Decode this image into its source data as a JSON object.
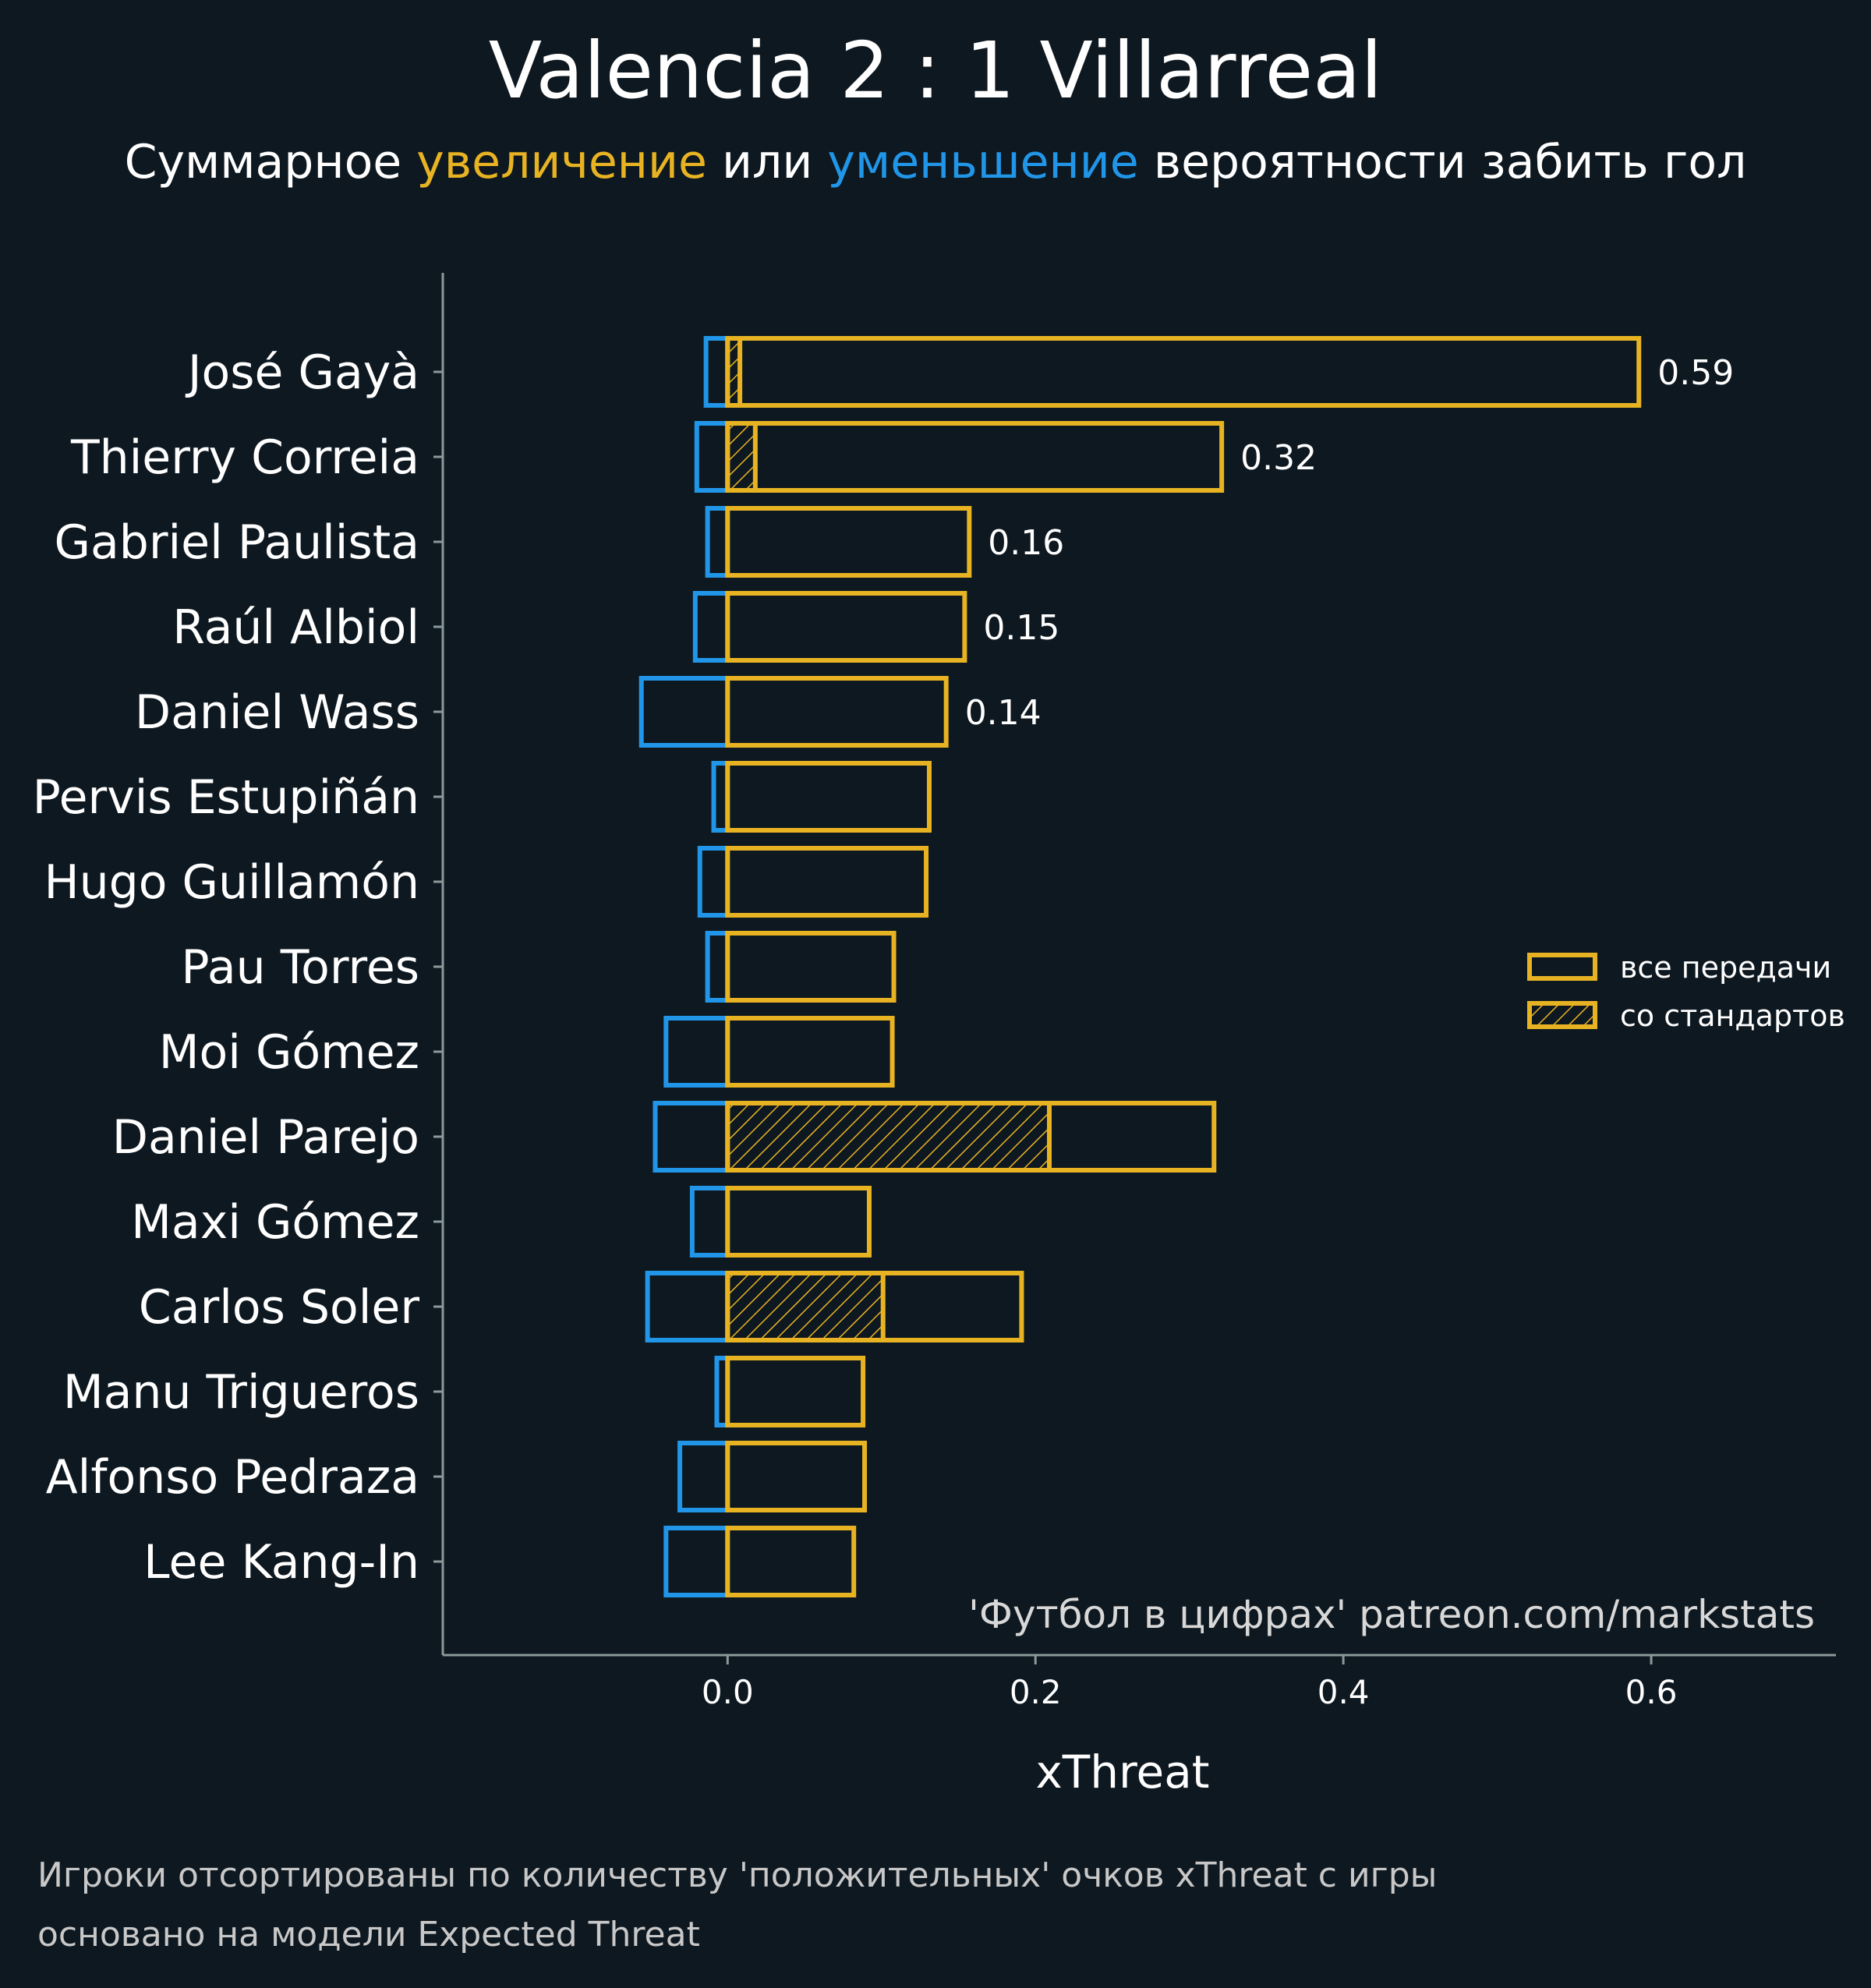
{
  "title": "Valencia 2 : 1 Villarreal",
  "subtitle": {
    "part1": "Суммарное ",
    "increase": "увеличение",
    "part2": " или ",
    "decrease": "уменьшение",
    "part3": " вероятности забить гол"
  },
  "colors": {
    "background": "#0e1820",
    "positive": "#e8b323",
    "negative": "#2196e8",
    "axis": "#8a9a9a"
  },
  "credit": "'Футбол в цифрах' patreon.com/markstats",
  "footnotes": [
    "Игроки отсортированы по количеству 'положительных' очков xThreat с игры",
    "основано на модели Expected Threat"
  ],
  "chart_data": {
    "type": "bar",
    "orientation": "horizontal",
    "xlabel": "xThreat",
    "xlim": [
      -0.185,
      0.72
    ],
    "xticks": [
      "0.0",
      "0.2",
      "0.4",
      "0.6"
    ],
    "xtick_values": [
      0.0,
      0.2,
      0.4,
      0.6
    ],
    "legend": {
      "position": "right",
      "entries": [
        "все передачи",
        "со стандартов"
      ]
    },
    "categories": [
      "José Gayà",
      "Thierry Correia",
      "Gabriel Paulista",
      "Raúl Albiol",
      "Daniel Wass",
      "Pervis Estupiñán",
      "Hugo Guillamón",
      "Pau Torres",
      "Moi Gómez",
      "Daniel Parejo",
      "Maxi Gómez",
      "Carlos Soler",
      "Manu Trigueros",
      "Alfonso Pedraza",
      "Lee Kang-In"
    ],
    "series": [
      {
        "name": "все передачи",
        "values": [
          0.592,
          0.321,
          0.157,
          0.154,
          0.142,
          0.131,
          0.129,
          0.108,
          0.107,
          0.316,
          0.092,
          0.191,
          0.088,
          0.089,
          0.082
        ]
      },
      {
        "name": "со стандартов",
        "values": [
          0.008,
          0.018,
          0.0,
          0.0,
          0.0,
          0.0,
          0.0,
          0.0,
          0.0,
          0.209,
          0.0,
          0.101,
          0.0,
          0.0,
          0.0
        ]
      },
      {
        "name": "negative",
        "values": [
          -0.014,
          -0.02,
          -0.013,
          -0.021,
          -0.056,
          -0.009,
          -0.018,
          -0.013,
          -0.04,
          -0.047,
          -0.023,
          -0.052,
          -0.007,
          -0.031,
          -0.04
        ]
      }
    ],
    "value_labels": [
      "0.59",
      "0.32",
      "0.16",
      "0.15",
      "0.14",
      "",
      "",
      "",
      "",
      "",
      "",
      "",
      "",
      "",
      ""
    ]
  }
}
